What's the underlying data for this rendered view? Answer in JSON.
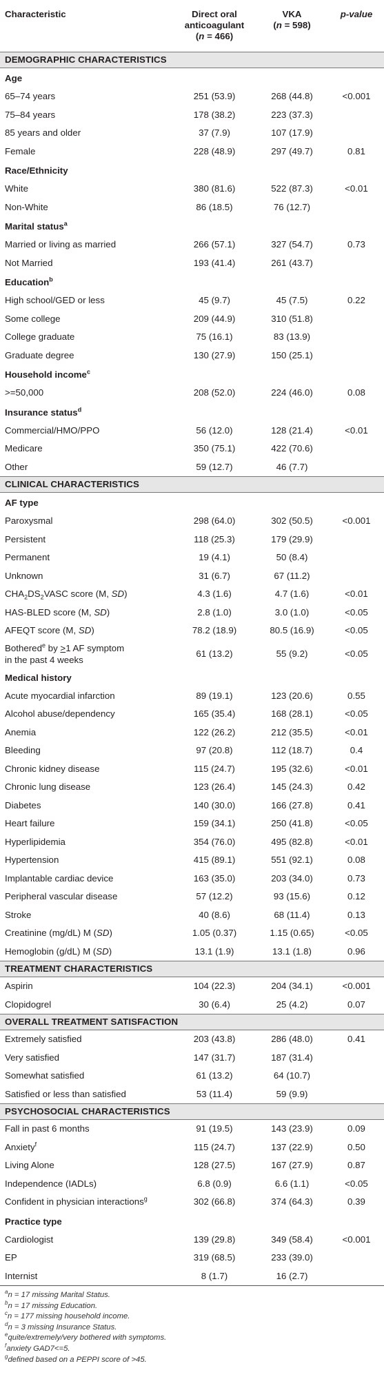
{
  "header": {
    "characteristic": "Characteristic",
    "doac": "Direct oral anticoagulant",
    "doac_n": "(n = 466)",
    "vka": "VKA",
    "vka_n": "(n = 598)",
    "pvalue": "p-value"
  },
  "rows": [
    {
      "t": "sec",
      "label": "DEMOGRAPHIC CHARACTERISTICS"
    },
    {
      "t": "grp",
      "label": "Age"
    },
    {
      "t": "row",
      "label": "65–74 years",
      "a": "251 (53.9)",
      "b": "268 (44.8)",
      "p": "<0.001"
    },
    {
      "t": "row",
      "label": "75–84 years",
      "a": "178 (38.2)",
      "b": "223 (37.3)",
      "p": ""
    },
    {
      "t": "row",
      "label": "85 years and older",
      "a": "37 (7.9)",
      "b": "107 (17.9)",
      "p": ""
    },
    {
      "t": "row",
      "label": "Female",
      "a": "228 (48.9)",
      "b": "297 (49.7)",
      "p": "0.81"
    },
    {
      "t": "grp",
      "label": "Race/Ethnicity"
    },
    {
      "t": "row",
      "label": "White",
      "a": "380 (81.6)",
      "b": "522 (87.3)",
      "p": "<0.01"
    },
    {
      "t": "row",
      "label": "Non-White",
      "a": "86 (18.5)",
      "b": "76 (12.7)",
      "p": ""
    },
    {
      "t": "grp",
      "label": "Marital status",
      "sup": "a"
    },
    {
      "t": "row",
      "label": "Married or living as married",
      "a": "266 (57.1)",
      "b": "327 (54.7)",
      "p": "0.73"
    },
    {
      "t": "row",
      "label": "Not Married",
      "a": "193 (41.4)",
      "b": "261 (43.7)",
      "p": ""
    },
    {
      "t": "grp",
      "label": "Education",
      "sup": "b"
    },
    {
      "t": "row",
      "label": "High school/GED or less",
      "a": "45 (9.7)",
      "b": "45 (7.5)",
      "p": "0.22"
    },
    {
      "t": "row",
      "label": "Some college",
      "a": "209 (44.9)",
      "b": "310 (51.8)",
      "p": ""
    },
    {
      "t": "row",
      "label": "College graduate",
      "a": "75 (16.1)",
      "b": "83 (13.9)",
      "p": ""
    },
    {
      "t": "row",
      "label": "Graduate degree",
      "a": "130 (27.9)",
      "b": "150 (25.1)",
      "p": ""
    },
    {
      "t": "grp",
      "label": "Household income",
      "sup": "c"
    },
    {
      "t": "row",
      "label": ">=50,000",
      "a": "208 (52.0)",
      "b": "224 (46.0)",
      "p": "0.08"
    },
    {
      "t": "grp",
      "label": "Insurance status",
      "sup": "d"
    },
    {
      "t": "row",
      "label": "Commercial/HMO/PPO",
      "a": "56 (12.0)",
      "b": "128 (21.4)",
      "p": "<0.01"
    },
    {
      "t": "row",
      "label": "Medicare",
      "a": "350 (75.1)",
      "b": "422 (70.6)",
      "p": ""
    },
    {
      "t": "row",
      "label": "Other",
      "a": "59 (12.7)",
      "b": "46 (7.7)",
      "p": ""
    },
    {
      "t": "sec",
      "label": "CLINICAL CHARACTERISTICS"
    },
    {
      "t": "grp",
      "label": "AF type"
    },
    {
      "t": "row",
      "label": "Paroxysmal",
      "a": "298 (64.0)",
      "b": "302 (50.5)",
      "p": "<0.001"
    },
    {
      "t": "row",
      "label": "Persistent",
      "a": "118 (25.3)",
      "b": "179 (29.9)",
      "p": ""
    },
    {
      "t": "row",
      "label": "Permanent",
      "a": "19 (4.1)",
      "b": "50 (8.4)",
      "p": ""
    },
    {
      "t": "row",
      "label": "Unknown",
      "a": "31 (6.7)",
      "b": "67 (11.2)",
      "p": ""
    },
    {
      "t": "row",
      "kind": "cha",
      "pre": "CHA",
      "s1": "2",
      "mid": "DS",
      "s2": "2",
      "post": "VASC score (M, ",
      "it": "SD",
      "end": ")",
      "a": "4.3 (1.6)",
      "b": "4.7 (1.6)",
      "p": "<0.01"
    },
    {
      "t": "row",
      "kind": "sd",
      "pre": "HAS-BLED score (M, ",
      "it": "SD",
      "end": ")",
      "a": "2.8 (1.0)",
      "b": "3.0 (1.0)",
      "p": "<0.05"
    },
    {
      "t": "row",
      "kind": "sd",
      "pre": "AFEQT score (M, ",
      "it": "SD",
      "end": ")",
      "a": "78.2 (18.9)",
      "b": "80.5 (16.9)",
      "p": "<0.05"
    },
    {
      "t": "two",
      "pre": "Bothered",
      "sup": "e",
      "post": " by ",
      "ge": ">",
      "post2": "1 AF symptom",
      "line2": "in the past 4 weeks",
      "a": "61 (13.2)",
      "b": "55 (9.2)",
      "p": "<0.05"
    },
    {
      "t": "grp",
      "label": "Medical history"
    },
    {
      "t": "row",
      "label": "Acute myocardial infarction",
      "a": "89 (19.1)",
      "b": "123 (20.6)",
      "p": "0.55"
    },
    {
      "t": "row",
      "label": "Alcohol abuse/dependency",
      "a": "165 (35.4)",
      "b": "168 (28.1)",
      "p": "<0.05"
    },
    {
      "t": "row",
      "label": "Anemia",
      "a": "122 (26.2)",
      "b": "212 (35.5)",
      "p": "<0.01"
    },
    {
      "t": "row",
      "label": "Bleeding",
      "a": "97 (20.8)",
      "b": "112 (18.7)",
      "p": "0.4"
    },
    {
      "t": "row",
      "label": "Chronic kidney disease",
      "a": "115 (24.7)",
      "b": "195 (32.6)",
      "p": "<0.01"
    },
    {
      "t": "row",
      "label": "Chronic lung disease",
      "a": "123 (26.4)",
      "b": "145 (24.3)",
      "p": "0.42"
    },
    {
      "t": "row",
      "label": "Diabetes",
      "a": "140 (30.0)",
      "b": "166 (27.8)",
      "p": "0.41"
    },
    {
      "t": "row",
      "label": "Heart failure",
      "a": "159 (34.1)",
      "b": "250 (41.8)",
      "p": "<0.05"
    },
    {
      "t": "row",
      "label": "Hyperlipidemia",
      "a": "354 (76.0)",
      "b": "495 (82.8)",
      "p": "<0.01"
    },
    {
      "t": "row",
      "label": "Hypertension",
      "a": "415 (89.1)",
      "b": "551 (92.1)",
      "p": "0.08"
    },
    {
      "t": "row",
      "label": "Implantable cardiac device",
      "a": "163 (35.0)",
      "b": "203 (34.0)",
      "p": "0.73"
    },
    {
      "t": "row",
      "label": "Peripheral vascular disease",
      "a": "57 (12.2)",
      "b": "93 (15.6)",
      "p": "0.12"
    },
    {
      "t": "row",
      "label": "Stroke",
      "a": "40 (8.6)",
      "b": "68 (11.4)",
      "p": "0.13"
    },
    {
      "t": "row",
      "kind": "sd",
      "pre": "Creatinine (mg/dL) M (",
      "it": "SD",
      "end": ")",
      "a": "1.05 (0.37)",
      "b": "1.15 (0.65)",
      "p": "<0.05"
    },
    {
      "t": "row",
      "kind": "sd",
      "pre": "Hemoglobin (g/dL) M (",
      "it": "SD",
      "end": ")",
      "a": "13.1 (1.9)",
      "b": "13.1 (1.8)",
      "p": "0.96"
    },
    {
      "t": "sec",
      "label": "TREATMENT CHARACTERISTICS"
    },
    {
      "t": "row",
      "label": "Aspirin",
      "a": "104 (22.3)",
      "b": "204 (34.1)",
      "p": "<0.001"
    },
    {
      "t": "row",
      "label": "Clopidogrel",
      "a": "30 (6.4)",
      "b": "25 (4.2)",
      "p": "0.07"
    },
    {
      "t": "sec",
      "label": "OVERALL TREATMENT SATISFACTION"
    },
    {
      "t": "row",
      "label": "Extremely satisfied",
      "a": "203 (43.8)",
      "b": "286 (48.0)",
      "p": "0.41"
    },
    {
      "t": "row",
      "label": "Very satisfied",
      "a": "147 (31.7)",
      "b": "187 (31.4)",
      "p": ""
    },
    {
      "t": "row",
      "label": "Somewhat satisfied",
      "a": "61 (13.2)",
      "b": "64 (10.7)",
      "p": ""
    },
    {
      "t": "row",
      "label": "Satisfied or less than satisfied",
      "a": "53 (11.4)",
      "b": "59 (9.9)",
      "p": ""
    },
    {
      "t": "sec",
      "label": "PSYCHOSOCIAL CHARACTERISTICS"
    },
    {
      "t": "row",
      "label": "Fall in past 6 months",
      "a": "91 (19.5)",
      "b": "143 (23.9)",
      "p": "0.09"
    },
    {
      "t": "row",
      "label": "Anxiety",
      "sup": "f",
      "a": "115 (24.7)",
      "b": "137 (22.9)",
      "p": "0.50"
    },
    {
      "t": "row",
      "label": "Living Alone",
      "a": "128 (27.5)",
      "b": "167 (27.9)",
      "p": "0.87"
    },
    {
      "t": "row",
      "label": "Independence (IADLs)",
      "a": "6.8 (0.9)",
      "b": "6.6 (1.1)",
      "p": "<0.05"
    },
    {
      "t": "row",
      "label": "Confident in physician interactions",
      "sup": "g",
      "a": "302 (66.8)",
      "b": "374 (64.3)",
      "p": "0.39"
    },
    {
      "t": "grp",
      "label": "Practice type"
    },
    {
      "t": "row",
      "label": "Cardiologist",
      "a": "139 (29.8)",
      "b": "349 (58.4)",
      "p": "<0.001"
    },
    {
      "t": "row",
      "label": "EP",
      "a": "319 (68.5)",
      "b": "233 (39.0)",
      "p": ""
    },
    {
      "t": "row",
      "label": "Internist",
      "a": "8 (1.7)",
      "b": "16 (2.7)",
      "p": "",
      "last": true
    }
  ],
  "footnotes": [
    {
      "mark": "a",
      "text": "n = 17 missing Marital Status."
    },
    {
      "mark": "b",
      "text": "n = 17 missing Education."
    },
    {
      "mark": "c",
      "text": "n = 177 missing household income."
    },
    {
      "mark": "d",
      "text": "n = 3 missing Insurance Status."
    },
    {
      "mark": "e",
      "text": "quite/extremely/very bothered with symptoms."
    },
    {
      "mark": "f",
      "text": "anxiety GAD7<=5."
    },
    {
      "mark": "g",
      "text": "defined based on a PEPPI score of >45."
    }
  ]
}
